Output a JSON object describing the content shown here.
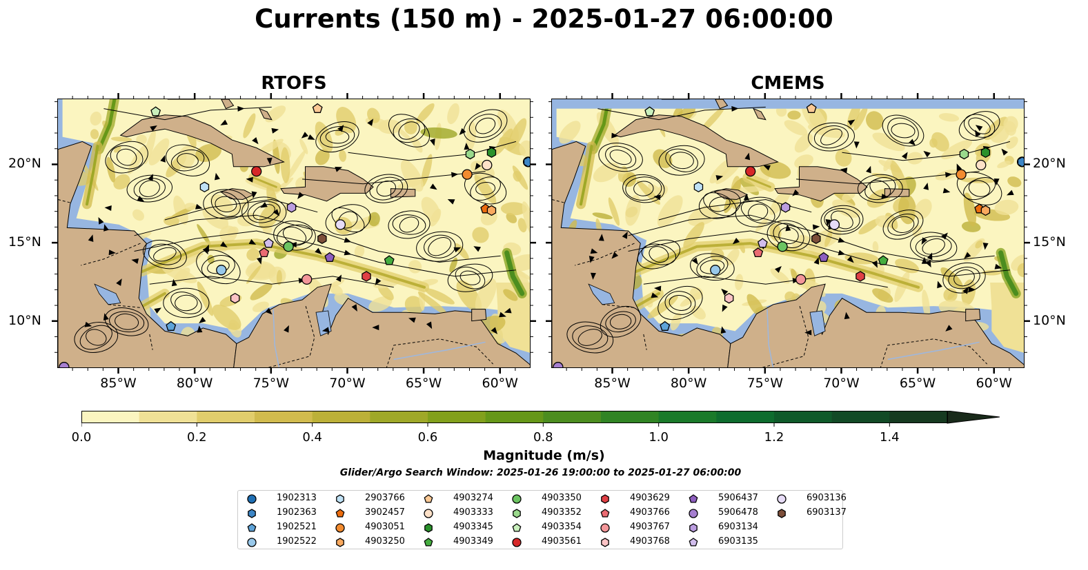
{
  "title": "Currents (150 m) - 2025-01-27 06:00:00",
  "panels": [
    {
      "title": "RTOFS"
    },
    {
      "title": "CMEMS"
    }
  ],
  "lon_ticks": [
    "85°W",
    "80°W",
    "75°W",
    "70°W",
    "65°W",
    "60°W"
  ],
  "lat_ticks": [
    "20°N",
    "15°N",
    "10°N"
  ],
  "map_extent": {
    "lon": [
      -89,
      -58
    ],
    "lat": [
      7,
      24.2
    ]
  },
  "colors": {
    "ocean": "#97b6e1",
    "land": "#cfb08a",
    "colormap": [
      "#fbf5c0",
      "#f0e196",
      "#e1cd6c",
      "#d1bb4e",
      "#bcb038",
      "#9fa828",
      "#82a01c",
      "#669718",
      "#4c8d1f",
      "#318424",
      "#1a7a2a",
      "#0e6c2e",
      "#0f5a2a",
      "#124a26",
      "#163a20",
      "#192a1a"
    ]
  },
  "colorbar": {
    "title": "Magnitude (m/s)",
    "ticks": [
      "0.0",
      "0.2",
      "0.4",
      "0.6",
      "0.8",
      "1.0",
      "1.2",
      "1.4"
    ],
    "range": [
      0,
      1.5
    ],
    "extend": "max"
  },
  "search_window": "Glider/Argo Search Window: 2025-01-26 19:00:00 to 2025-01-27 06:00:00",
  "floats": [
    {
      "id": "1902313",
      "marker": "circle",
      "color": "#1f6fb4",
      "lon": -58.2,
      "lat": 20.2
    },
    {
      "id": "1902363",
      "marker": "hexagon",
      "color": "#3d86c6",
      "lon": -58.2,
      "lat": 20.2
    },
    {
      "id": "1902521",
      "marker": "pentagon",
      "color": "#5ea3d8",
      "lon": -81.6,
      "lat": 9.7
    },
    {
      "id": "1902522",
      "marker": "circle",
      "color": "#98c8ea",
      "lon": -78.3,
      "lat": 13.3
    },
    {
      "id": "2903766",
      "marker": "hexagon",
      "color": "#bfe1f5",
      "lon": -79.4,
      "lat": 18.6
    },
    {
      "id": "3902457",
      "marker": "pentagon",
      "color": "#ec6c0e",
      "lon": -61.0,
      "lat": 17.2
    },
    {
      "id": "4903051",
      "marker": "circle",
      "color": "#f28b2f",
      "lon": -62.2,
      "lat": 19.4
    },
    {
      "id": "4903250",
      "marker": "hexagon",
      "color": "#f9a95e",
      "lon": -60.6,
      "lat": 17.1
    },
    {
      "id": "4903274",
      "marker": "pentagon",
      "color": "#fbc995",
      "lon": -72.0,
      "lat": 23.6
    },
    {
      "id": "4903333",
      "marker": "circle",
      "color": "#fde1c8",
      "lon": -60.9,
      "lat": 20.0
    },
    {
      "id": "4903345",
      "marker": "hexagon",
      "color": "#2a912b",
      "lon": -60.6,
      "lat": 20.8
    },
    {
      "id": "4903349",
      "marker": "pentagon",
      "color": "#45ad3f",
      "lon": -67.3,
      "lat": 13.9
    },
    {
      "id": "4903350",
      "marker": "circle",
      "color": "#6cc462",
      "lon": -73.9,
      "lat": 14.8
    },
    {
      "id": "4903352",
      "marker": "hexagon",
      "color": "#9ad98c",
      "lon": -62.0,
      "lat": 20.7
    },
    {
      "id": "4903354",
      "marker": "pentagon",
      "color": "#c9f0bd",
      "lon": -82.6,
      "lat": 23.4
    },
    {
      "id": "4903561",
      "marker": "circle",
      "color": "#d62728",
      "lon": -76.0,
      "lat": 19.6
    },
    {
      "id": "4903629",
      "marker": "hexagon",
      "color": "#e04045",
      "lon": -68.8,
      "lat": 12.9
    },
    {
      "id": "4903766",
      "marker": "pentagon",
      "color": "#ea6b72",
      "lon": -75.5,
      "lat": 14.4
    },
    {
      "id": "4903767",
      "marker": "circle",
      "color": "#f39699",
      "lon": -72.7,
      "lat": 12.7
    },
    {
      "id": "4903768",
      "marker": "hexagon",
      "color": "#fbc3c5",
      "lon": -77.4,
      "lat": 11.5
    },
    {
      "id": "5906437",
      "marker": "pentagon",
      "color": "#8e5fbf",
      "lon": -71.2,
      "lat": 14.1
    },
    {
      "id": "5906478",
      "marker": "circle",
      "color": "#a67fd0",
      "lon": -88.6,
      "lat": 7.1
    },
    {
      "id": "6903134",
      "marker": "hexagon",
      "color": "#bb9de0",
      "lon": -73.7,
      "lat": 17.3
    },
    {
      "id": "6903135",
      "marker": "pentagon",
      "color": "#d1bdec",
      "lon": -75.2,
      "lat": 15.0
    },
    {
      "id": "6903136",
      "marker": "circle",
      "color": "#e7dcf7",
      "lon": -70.5,
      "lat": 16.2
    },
    {
      "id": "6903137",
      "marker": "hexagon",
      "color": "#7d4f3a",
      "lon": -71.7,
      "lat": 15.3
    }
  ]
}
